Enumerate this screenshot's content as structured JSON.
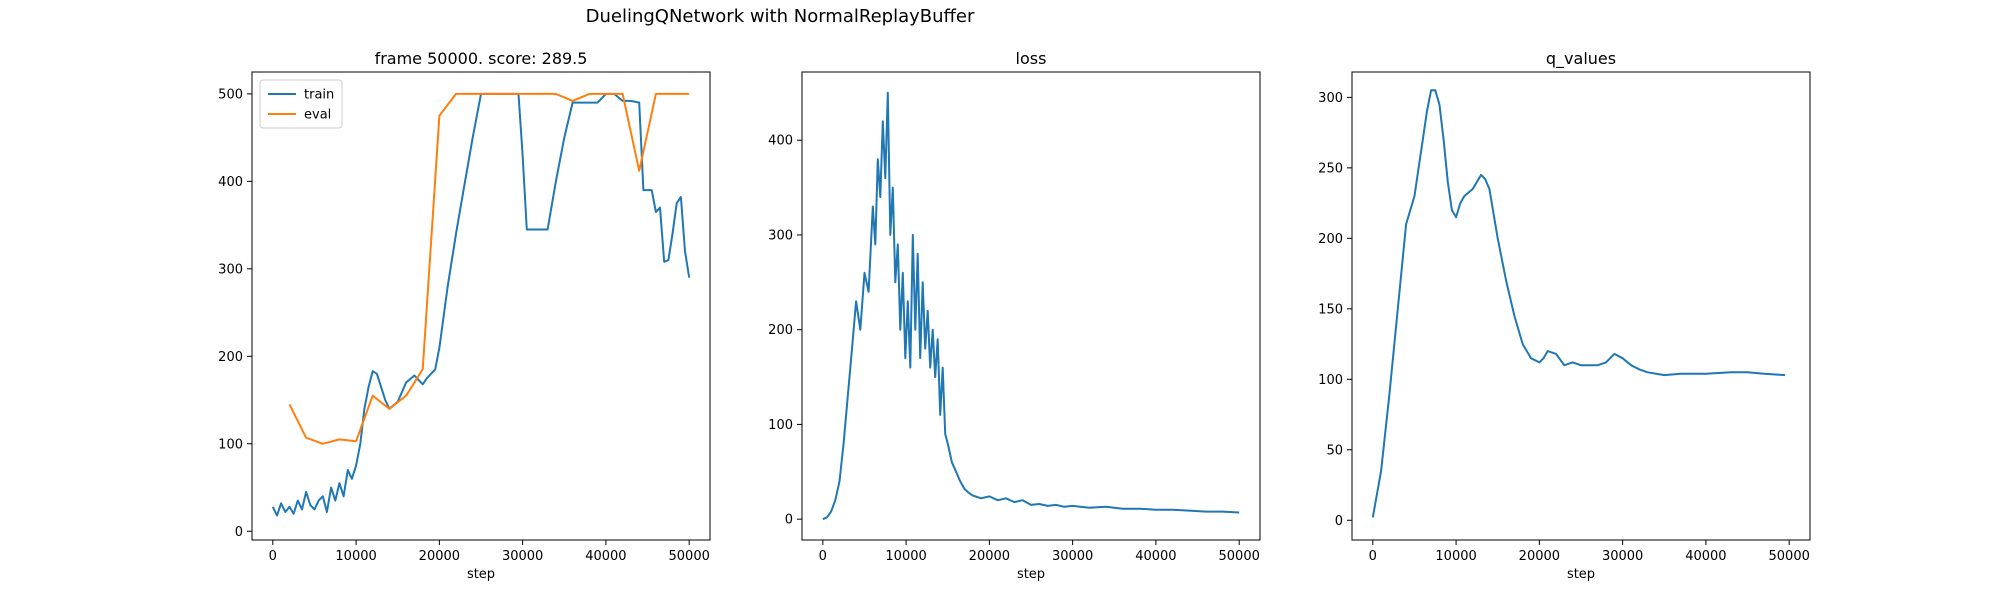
{
  "figure": {
    "suptitle": "DuelingQNetwork with NormalReplayBuffer"
  },
  "colors": {
    "train": "#1f77b4",
    "eval": "#ff7f0e",
    "axes": "#000000"
  },
  "chart_data": [
    {
      "id": "score",
      "type": "line",
      "title": "frame 50000. score: 289.5",
      "xlabel": "step",
      "ylabel": "",
      "xlim": [
        -2500,
        52500
      ],
      "ylim": [
        -10,
        525
      ],
      "xticks": [
        0,
        10000,
        20000,
        30000,
        40000,
        50000
      ],
      "yticks": [
        0,
        100,
        200,
        300,
        400,
        500
      ],
      "legend": {
        "placement": "top-left",
        "entries": [
          "train",
          "eval"
        ]
      },
      "grid": false,
      "series": [
        {
          "name": "train",
          "color": "#1f77b4",
          "x": [
            0,
            500,
            1000,
            1500,
            2000,
            2500,
            3000,
            3500,
            4000,
            4500,
            5000,
            5500,
            6000,
            6500,
            7000,
            7500,
            8000,
            8500,
            9000,
            9500,
            10000,
            10500,
            11000,
            11500,
            12000,
            12500,
            13000,
            13500,
            14000,
            15000,
            16000,
            17000,
            18000,
            18500,
            19000,
            19500,
            20000,
            21000,
            22000,
            23000,
            24000,
            25000,
            25500,
            29500,
            30000,
            30500,
            31000,
            33000,
            34000,
            35000,
            36000,
            37000,
            38000,
            39000,
            40000,
            41000,
            42000,
            43000,
            44000,
            44500,
            45500,
            46000,
            46500,
            47000,
            47500,
            48000,
            48500,
            49000,
            49500,
            50000
          ],
          "y": [
            28,
            18,
            32,
            22,
            28,
            20,
            35,
            25,
            45,
            30,
            25,
            35,
            40,
            22,
            50,
            35,
            55,
            40,
            70,
            60,
            75,
            100,
            140,
            165,
            183,
            180,
            165,
            150,
            140,
            148,
            170,
            178,
            168,
            175,
            180,
            185,
            210,
            280,
            340,
            395,
            450,
            500,
            500,
            500,
            430,
            345,
            345,
            345,
            400,
            450,
            490,
            490,
            490,
            490,
            500,
            500,
            492,
            492,
            490,
            390,
            390,
            365,
            370,
            308,
            310,
            340,
            375,
            382,
            320,
            290
          ]
        },
        {
          "name": "eval",
          "color": "#ff7f0e",
          "x": [
            2000,
            4000,
            6000,
            8000,
            10000,
            12000,
            14000,
            16000,
            18000,
            20000,
            22000,
            24000,
            26000,
            28000,
            30000,
            32000,
            34000,
            36000,
            38000,
            40000,
            42000,
            44000,
            46000,
            48000,
            50000
          ],
          "y": [
            145,
            107,
            100,
            105,
            103,
            155,
            140,
            155,
            185,
            475,
            500,
            500,
            500,
            500,
            500,
            500,
            500,
            492,
            500,
            500,
            500,
            412,
            500,
            500,
            500
          ]
        }
      ]
    },
    {
      "id": "loss",
      "type": "line",
      "title": "loss",
      "xlabel": "step",
      "ylabel": "",
      "xlim": [
        -2500,
        52500
      ],
      "ylim": [
        -22,
        472
      ],
      "xticks": [
        0,
        10000,
        20000,
        30000,
        40000,
        50000
      ],
      "yticks": [
        0,
        100,
        200,
        300,
        400
      ],
      "grid": false,
      "series": [
        {
          "name": "",
          "color": "#1f77b4",
          "x": [
            0,
            500,
            1000,
            1500,
            2000,
            2500,
            3000,
            3500,
            4000,
            4500,
            5000,
            5500,
            6000,
            6300,
            6600,
            6900,
            7200,
            7500,
            7800,
            8100,
            8400,
            8700,
            9000,
            9300,
            9600,
            9900,
            10200,
            10500,
            10800,
            11100,
            11400,
            11700,
            12000,
            12300,
            12600,
            12900,
            13200,
            13500,
            13800,
            14100,
            14400,
            14700,
            15000,
            15500,
            16000,
            16500,
            17000,
            17500,
            18000,
            19000,
            20000,
            21000,
            22000,
            23000,
            24000,
            25000,
            26000,
            27000,
            28000,
            29000,
            30000,
            32000,
            34000,
            36000,
            38000,
            40000,
            42000,
            44000,
            46000,
            48000,
            50000
          ],
          "y": [
            0,
            2,
            8,
            20,
            40,
            80,
            130,
            180,
            230,
            200,
            260,
            240,
            330,
            290,
            380,
            340,
            420,
            360,
            450,
            300,
            350,
            250,
            290,
            200,
            260,
            170,
            230,
            160,
            300,
            200,
            280,
            170,
            250,
            180,
            220,
            160,
            200,
            150,
            190,
            110,
            160,
            90,
            80,
            60,
            50,
            40,
            32,
            28,
            25,
            22,
            24,
            20,
            22,
            18,
            20,
            15,
            16,
            14,
            15,
            13,
            14,
            12,
            13,
            11,
            11,
            10,
            10,
            9,
            8,
            8,
            7
          ]
        }
      ]
    },
    {
      "id": "q_values",
      "type": "line",
      "title": "q_values",
      "xlabel": "step",
      "ylabel": "",
      "xlim": [
        -2500,
        52500
      ],
      "ylim": [
        -14,
        318
      ],
      "xticks": [
        0,
        10000,
        20000,
        30000,
        40000,
        50000
      ],
      "yticks": [
        0,
        50,
        100,
        150,
        200,
        250,
        300
      ],
      "grid": false,
      "series": [
        {
          "name": "",
          "color": "#1f77b4",
          "x": [
            0,
            1000,
            2000,
            3000,
            4000,
            5000,
            5500,
            6000,
            6500,
            7000,
            7500,
            8000,
            8500,
            9000,
            9500,
            10000,
            10500,
            11000,
            12000,
            13000,
            13500,
            14000,
            15000,
            16000,
            17000,
            18000,
            19000,
            20000,
            20500,
            21000,
            22000,
            23000,
            24000,
            25000,
            26000,
            27000,
            28000,
            29000,
            30000,
            31000,
            32000,
            33000,
            35000,
            37000,
            40000,
            43000,
            45000,
            47000,
            49500
          ],
          "y": [
            2,
            35,
            90,
            150,
            210,
            230,
            250,
            270,
            290,
            305,
            305,
            295,
            270,
            240,
            220,
            215,
            225,
            230,
            235,
            245,
            242,
            235,
            200,
            170,
            145,
            125,
            115,
            112,
            115,
            120,
            118,
            110,
            112,
            110,
            110,
            110,
            112,
            118,
            115,
            110,
            107,
            105,
            103,
            104,
            104,
            105,
            105,
            104,
            103
          ]
        }
      ]
    }
  ]
}
